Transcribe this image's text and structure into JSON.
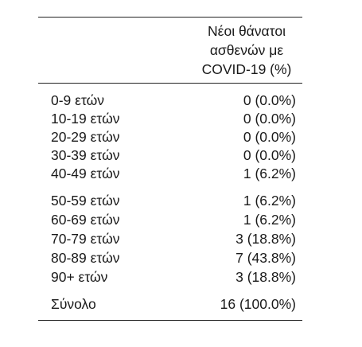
{
  "header": {
    "line1": "Νέοι θάνατοι",
    "line2": "ασθενών με",
    "line3": "COVID-19 (%)"
  },
  "rows": [
    {
      "label": "0-9 ετών",
      "count": "0",
      "pct": "(0.0%)"
    },
    {
      "label": "10-19 ετών",
      "count": "0",
      "pct": "(0.0%)"
    },
    {
      "label": "20-29 ετών",
      "count": "0",
      "pct": "(0.0%)"
    },
    {
      "label": "30-39 ετών",
      "count": "0",
      "pct": "(0.0%)"
    },
    {
      "label": "40-49 ετών",
      "count": "1",
      "pct": "(6.2%)"
    },
    {
      "label": "50-59 ετών",
      "count": "1",
      "pct": "(6.2%)"
    },
    {
      "label": "60-69 ετών",
      "count": "1",
      "pct": "(6.2%)"
    },
    {
      "label": "70-79 ετών",
      "count": "3",
      "pct": "(18.8%)"
    },
    {
      "label": "80-89 ετών",
      "count": "7",
      "pct": "(43.8%)"
    },
    {
      "label": "90+ ετών",
      "count": "3",
      "pct": "(18.8%)"
    }
  ],
  "total": {
    "label": "Σύνολο",
    "count": "16",
    "pct": "(100.0%)"
  }
}
